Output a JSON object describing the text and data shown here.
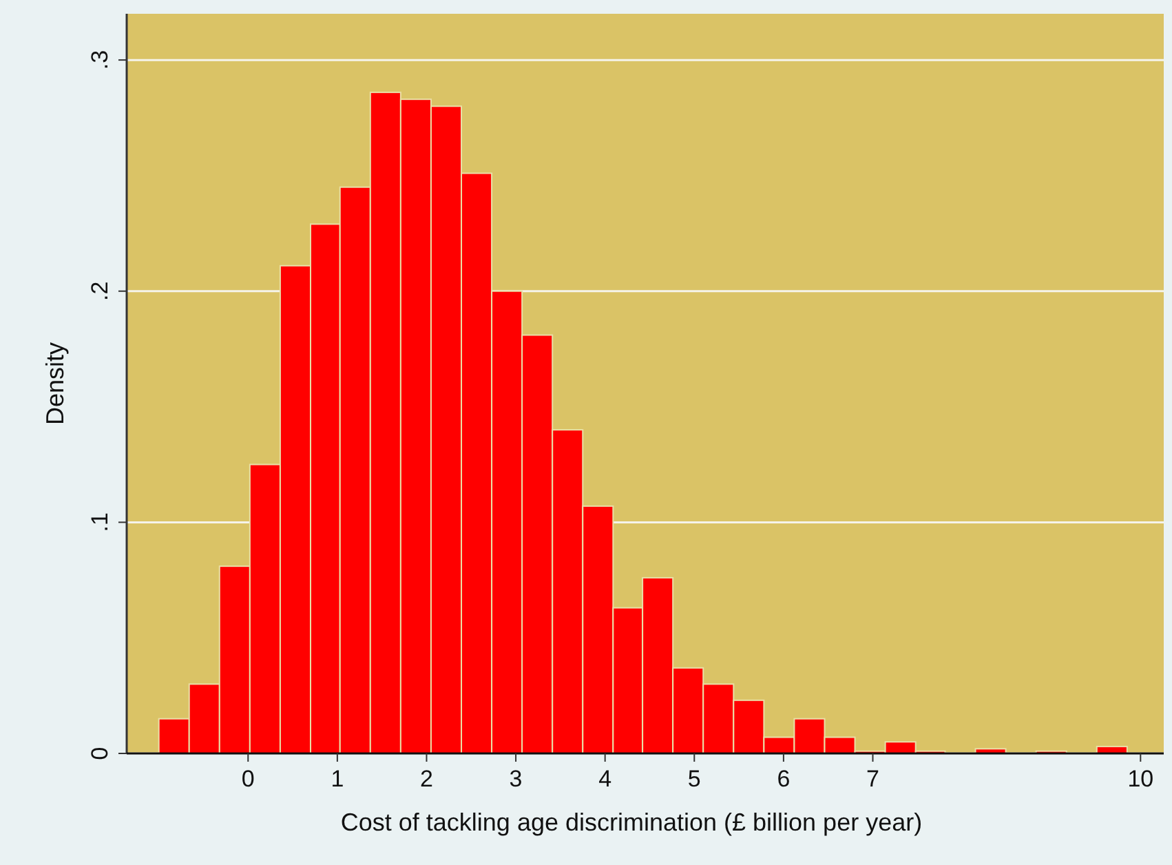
{
  "chart_data": {
    "type": "histogram",
    "xlabel": "Cost of tackling age discrimination (£ billion per year)",
    "ylabel": "Density",
    "bins": [
      -1,
      -0.66,
      -0.32,
      0.02,
      0.36,
      0.7,
      1.03,
      1.37,
      1.71,
      2.05,
      2.39,
      2.73,
      3.07,
      3.41,
      3.75,
      4.09,
      4.42,
      4.76,
      5.1,
      5.44,
      5.78,
      6.12,
      6.46,
      6.8,
      7.14,
      7.48,
      7.81,
      8.15,
      8.49,
      8.83,
      9.17,
      9.51,
      9.85
    ],
    "values": [
      0.015,
      0.03,
      0.081,
      0.125,
      0.211,
      0.229,
      0.245,
      0.286,
      0.283,
      0.28,
      0.251,
      0.2,
      0.181,
      0.14,
      0.107,
      0.063,
      0.076,
      0.037,
      0.03,
      0.023,
      0.007,
      0.015,
      0.007,
      0.001,
      0.005,
      0.001,
      0,
      0.002,
      0,
      0.001,
      0,
      0.003
    ],
    "color": "#ff0000",
    "xlim": [
      -1.36,
      10.26
    ],
    "xticks": [
      0,
      1,
      2,
      3,
      4,
      5,
      6,
      7,
      10
    ],
    "ylim": [
      0,
      0.32
    ],
    "yticks": [
      0,
      {
        "value": 0.1,
        "label": ".1"
      },
      {
        "value": 0.2,
        "label": ".2"
      },
      {
        "value": 0.3,
        "label": ".3"
      }
    ],
    "grid": "y"
  }
}
